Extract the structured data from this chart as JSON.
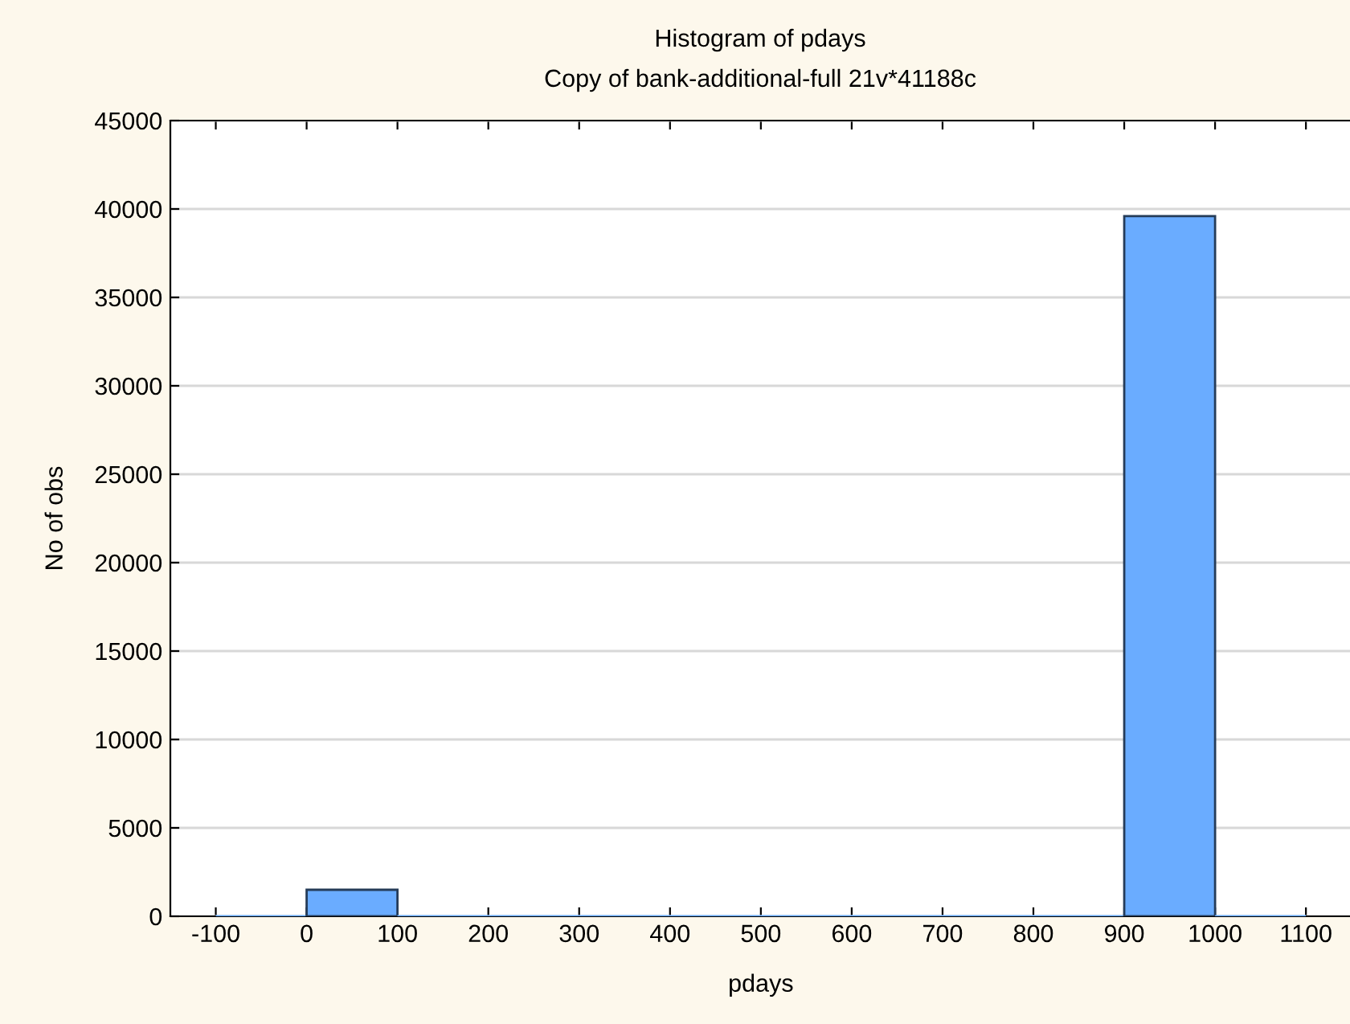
{
  "chart_data": {
    "type": "histogram",
    "title": "Histogram of pdays",
    "subtitle": "Copy of bank-additional-full 21v*41188c",
    "xlabel": "pdays",
    "ylabel": "No of obs",
    "bins": [
      -100,
      0,
      100,
      200,
      300,
      400,
      500,
      600,
      700,
      800,
      900,
      1000,
      1100
    ],
    "values": [
      0,
      1500,
      0,
      0,
      0,
      0,
      0,
      0,
      0,
      0,
      39600,
      0
    ],
    "color": "#6aacff",
    "xlim": [
      -150,
      1150
    ],
    "xticks": [
      -100,
      0,
      100,
      200,
      300,
      400,
      500,
      600,
      700,
      800,
      900,
      1000,
      1100
    ],
    "ylim": [
      0,
      45000
    ],
    "yticks": [
      0,
      5000,
      10000,
      15000,
      20000,
      25000,
      30000,
      35000,
      40000,
      45000
    ],
    "grid": "y",
    "legend": false
  }
}
